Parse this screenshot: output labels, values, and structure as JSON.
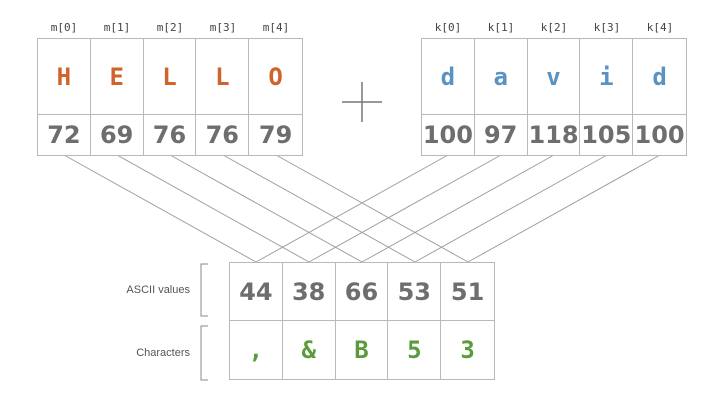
{
  "message": {
    "indices": [
      "m[0]",
      "m[1]",
      "m[2]",
      "m[3]",
      "m[4]"
    ],
    "chars": [
      "H",
      "E",
      "L",
      "L",
      "O"
    ],
    "codes": [
      "72",
      "69",
      "76",
      "76",
      "79"
    ]
  },
  "operator": "+",
  "key": {
    "indices": [
      "k[0]",
      "k[1]",
      "k[2]",
      "k[3]",
      "k[4]"
    ],
    "chars": [
      "d",
      "a",
      "v",
      "i",
      "d"
    ],
    "codes": [
      "100",
      "97",
      "118",
      "105",
      "100"
    ]
  },
  "result": {
    "ascii_label": "ASCII values",
    "char_label": "Characters",
    "codes": [
      "44",
      "38",
      "66",
      "53",
      "51"
    ],
    "chars": [
      ",",
      "&",
      "B",
      "5",
      "3"
    ]
  },
  "colors": {
    "message": "#d2622b",
    "key": "#5a93c1",
    "result": "#5b9b3d",
    "numbers": "#6e6e6e",
    "lines": "#a0a0a0"
  }
}
